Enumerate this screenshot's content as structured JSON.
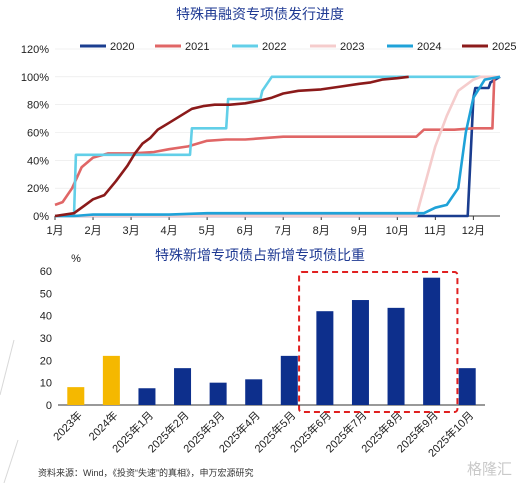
{
  "chart_data": [
    {
      "type": "line",
      "title": "特殊再融资专项债发行进度",
      "x_ticks": [
        "1月",
        "2月",
        "3月",
        "4月",
        "5月",
        "6月",
        "7月",
        "8月",
        "9月",
        "10月",
        "11月",
        "12月"
      ],
      "y_ticks": [
        "0%",
        "20%",
        "40%",
        "60%",
        "80%",
        "100%",
        "120%"
      ],
      "ylim": [
        0,
        120
      ],
      "legend_position": "top",
      "series": [
        {
          "name": "2020",
          "color": "#1a3d8f",
          "x": [
            1,
            11.85,
            12.0,
            12.05,
            12.4,
            12.45,
            12.7
          ],
          "y": [
            0,
            0,
            85,
            92,
            92,
            96,
            100
          ]
        },
        {
          "name": "2021",
          "color": "#e06666",
          "x": [
            1,
            1.2,
            1.45,
            1.7,
            2.0,
            2.4,
            3.0,
            3.6,
            4.0,
            4.5,
            5.0,
            5.5,
            6.0,
            6.5,
            7.0,
            8.0,
            9.0,
            10.0,
            10.5,
            10.7,
            11.0,
            11.5,
            12.0,
            12.5,
            12.55,
            12.7
          ],
          "y": [
            8,
            10,
            20,
            35,
            42,
            45,
            45,
            46,
            48,
            50,
            54,
            55,
            55,
            56,
            57,
            57,
            57,
            57,
            57,
            62,
            62,
            62,
            63,
            63,
            100,
            100
          ]
        },
        {
          "name": "2022",
          "color": "#62cfe8",
          "x": [
            1,
            1.5,
            1.55,
            4.0,
            4.55,
            4.6,
            5.5,
            5.55,
            6.4,
            6.45,
            6.7,
            12.7
          ],
          "y": [
            0,
            0,
            44,
            44,
            44,
            63,
            63,
            84,
            84,
            90,
            100,
            100
          ]
        },
        {
          "name": "2023",
          "color": "#f5cccc",
          "x": [
            1,
            10.5,
            10.75,
            11.0,
            11.3,
            11.6,
            12.0,
            12.2,
            12.7
          ],
          "y": [
            0,
            0,
            25,
            50,
            72,
            90,
            98,
            100,
            100
          ]
        },
        {
          "name": "2024",
          "color": "#1fa2d8",
          "x": [
            1,
            1.5,
            2.0,
            3.0,
            4.0,
            5.0,
            6.0,
            7.0,
            8.0,
            9.0,
            10.0,
            10.7,
            11.0,
            11.3,
            11.6,
            11.8,
            12.0,
            12.3,
            12.7
          ],
          "y": [
            0,
            0,
            1,
            1,
            1,
            2,
            2,
            2,
            2,
            2,
            2,
            2,
            6,
            8,
            20,
            60,
            85,
            98,
            100
          ]
        },
        {
          "name": "2025",
          "color": "#8b1a1a",
          "x": [
            1,
            1.5,
            1.8,
            2.0,
            2.3,
            2.6,
            2.9,
            3.1,
            3.3,
            3.5,
            3.7,
            4.0,
            4.3,
            4.6,
            4.9,
            5.2,
            5.6,
            6.0,
            6.4,
            6.7,
            7.0,
            7.4,
            8.0,
            8.5,
            9.0,
            9.3,
            9.6,
            10.0,
            10.3
          ],
          "y": [
            0,
            2,
            8,
            12,
            15,
            25,
            36,
            45,
            52,
            56,
            62,
            67,
            72,
            77,
            79,
            80,
            80,
            81,
            83,
            85,
            88,
            90,
            91,
            93,
            95,
            96,
            98,
            99,
            100
          ]
        }
      ]
    },
    {
      "type": "bar",
      "title": "特殊新增专项债占新增专项债比重",
      "ylabel": "%",
      "ylim": [
        0,
        60
      ],
      "y_ticks": [
        "0",
        "10",
        "20",
        "30",
        "40",
        "50",
        "60"
      ],
      "categories": [
        "2023年",
        "2024年",
        "2025年1月",
        "2025年2月",
        "2025年3月",
        "2025年4月",
        "2025年5月",
        "2025年6月",
        "2025年7月",
        "2025年8月",
        "2025年9月",
        "2025年10月"
      ],
      "values": [
        8,
        22,
        7.5,
        16.5,
        10,
        11.5,
        22,
        42,
        47,
        43.5,
        57,
        16.5
      ],
      "colors": [
        "#f5b800",
        "#f5b800",
        "#0d2f8c",
        "#0d2f8c",
        "#0d2f8c",
        "#0d2f8c",
        "#0d2f8c",
        "#0d2f8c",
        "#0d2f8c",
        "#0d2f8c",
        "#0d2f8c",
        "#0d2f8c"
      ],
      "highlight": "dashed red box around 2025年6月 – 2025年9月"
    }
  ],
  "footer": {
    "source": "资料来源：Wind，《投资“失速”的真相》，申万宏源研究",
    "logo": "格隆汇"
  }
}
